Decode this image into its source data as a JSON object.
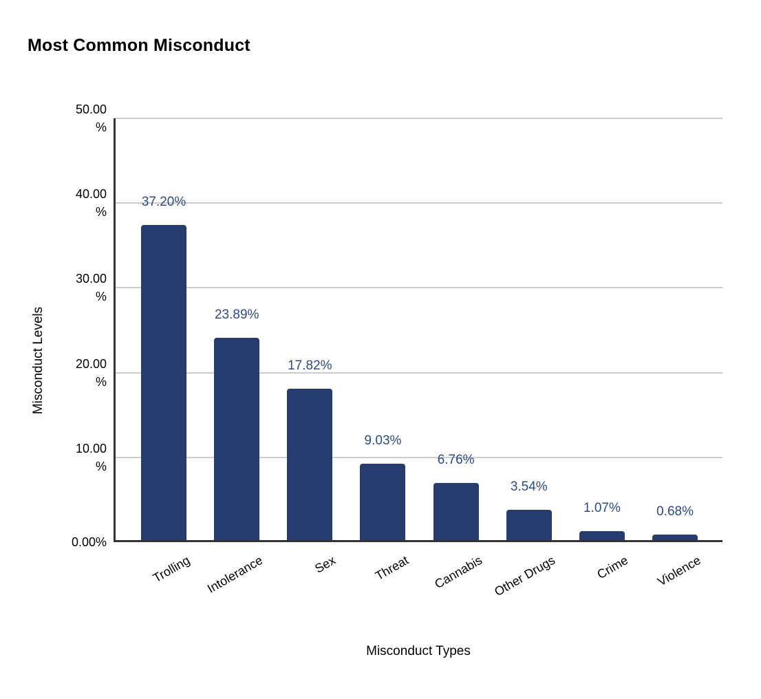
{
  "chart_data": {
    "type": "bar",
    "title": "Most Common Misconduct",
    "xlabel": "Misconduct Types",
    "ylabel": "Misconduct Levels",
    "categories": [
      "Trolling",
      "Intolerance",
      "Sex",
      "Threat",
      "Cannabis",
      "Other Drugs",
      "Crime",
      "Violence"
    ],
    "values": [
      37.2,
      23.89,
      17.82,
      9.03,
      6.76,
      3.54,
      1.07,
      0.68
    ],
    "value_labels": [
      "37.20%",
      "23.89%",
      "17.82%",
      "9.03%",
      "6.76%",
      "3.54%",
      "1.07%",
      "0.68%"
    ],
    "ylim": [
      0,
      50
    ],
    "y_ticks": [
      {
        "value": 50,
        "label": "50.00\n%"
      },
      {
        "value": 40,
        "label": "40.00\n%"
      },
      {
        "value": 30,
        "label": "30.00\n%"
      },
      {
        "value": 20,
        "label": "20.00\n%"
      },
      {
        "value": 10,
        "label": "10.00\n%"
      },
      {
        "value": 0,
        "label": "0.00%"
      }
    ],
    "grid": true,
    "legend_position": "none",
    "colors": {
      "bar": "#273c6e",
      "value_label": "#2c4a85",
      "gridline": "#cccccc",
      "axis_line": "#333333",
      "text": "#000000",
      "background": "#ffffff"
    }
  }
}
